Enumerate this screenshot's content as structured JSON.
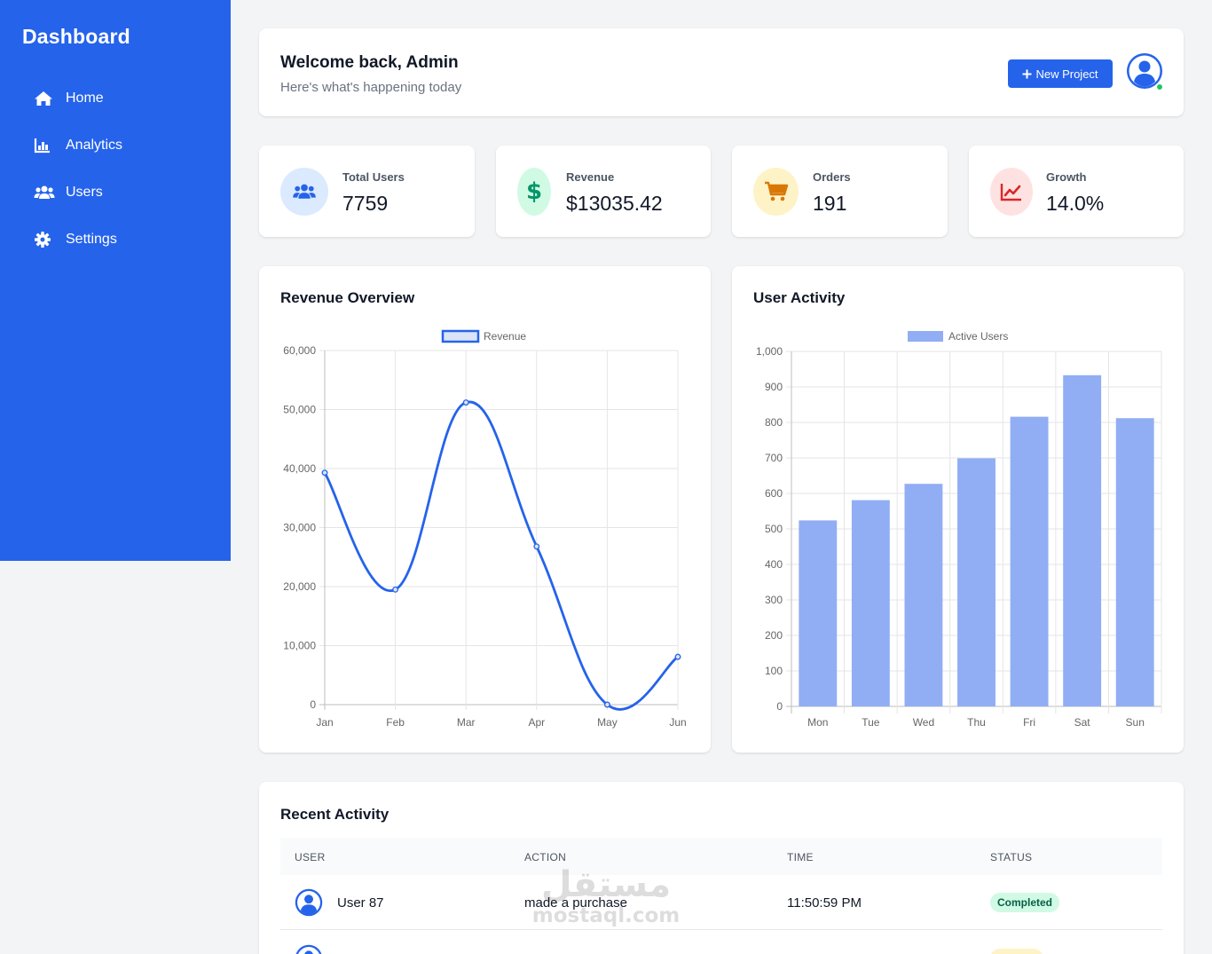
{
  "sidebar": {
    "brand": "Dashboard",
    "items": [
      {
        "label": "Home",
        "icon": "home-icon"
      },
      {
        "label": "Analytics",
        "icon": "bar-chart-icon"
      },
      {
        "label": "Users",
        "icon": "users-icon"
      },
      {
        "label": "Settings",
        "icon": "gear-icon"
      }
    ]
  },
  "header": {
    "title": "Welcome back, Admin",
    "subtitle": "Here's what's happening today",
    "button_label": "New Project",
    "avatar_icon": "user-avatar-icon"
  },
  "stats": [
    {
      "label": "Total Users",
      "value": "7759",
      "icon": "users-icon",
      "color": "#2563eb",
      "bg": "#dbeafe"
    },
    {
      "label": "Revenue",
      "value": "$13035.42",
      "icon": "dollar-icon",
      "color": "#059669",
      "bg": "#d1fae5"
    },
    {
      "label": "Orders",
      "value": "191",
      "icon": "cart-icon",
      "color": "#d97706",
      "bg": "#fef3c7"
    },
    {
      "label": "Growth",
      "value": "14.0%",
      "icon": "trend-up-icon",
      "color": "#dc2626",
      "bg": "#fee2e2"
    }
  ],
  "charts": {
    "revenue_title": "Revenue Overview",
    "activity_title": "User Activity"
  },
  "chart_data": [
    {
      "type": "line",
      "title": "Revenue Overview",
      "x": [
        "Jan",
        "Feb",
        "Mar",
        "Apr",
        "May",
        "Jun"
      ],
      "series": [
        {
          "name": "Revenue",
          "values": [
            39300,
            19500,
            51200,
            26800,
            0,
            8100
          ]
        }
      ],
      "ylim": [
        0,
        60000
      ],
      "yticks": [
        "0",
        "10,000",
        "20,000",
        "30,000",
        "40,000",
        "50,000",
        "60,000"
      ],
      "grid": true,
      "legend": "top",
      "color": "#2563eb"
    },
    {
      "type": "bar",
      "title": "User Activity",
      "categories": [
        "Mon",
        "Tue",
        "Wed",
        "Thu",
        "Fri",
        "Sat",
        "Sun"
      ],
      "series": [
        {
          "name": "Active Users",
          "values": [
            524,
            581,
            627,
            699,
            816,
            933,
            812
          ]
        }
      ],
      "ylim": [
        0,
        1000
      ],
      "yticks": [
        "0",
        "100",
        "200",
        "300",
        "400",
        "500",
        "600",
        "700",
        "800",
        "900",
        "1,000"
      ],
      "grid": true,
      "legend": "top",
      "color": "#91aef4"
    }
  ],
  "activity": {
    "title": "Recent Activity",
    "headers": [
      "USER",
      "ACTION",
      "TIME",
      "STATUS"
    ],
    "rows": [
      {
        "user": "User 87",
        "action": "made a purchase",
        "time": "11:50:59 PM",
        "status": "Completed"
      }
    ]
  },
  "watermark": {
    "arabic": "مستقل",
    "latin": "mostaql.com"
  }
}
